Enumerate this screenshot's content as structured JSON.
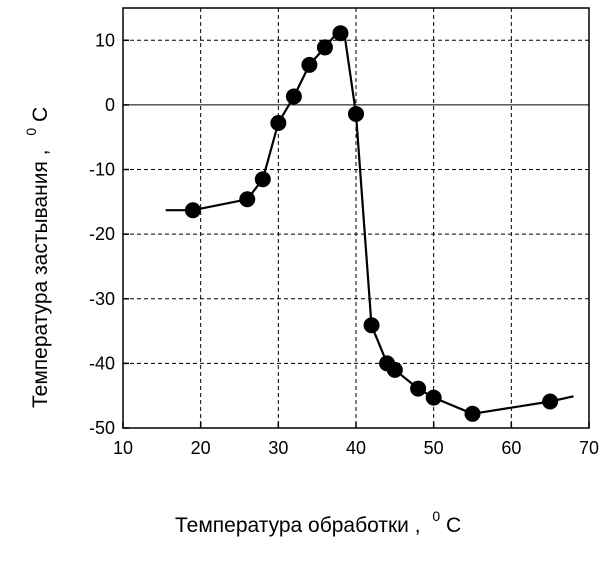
{
  "chart_data": {
    "type": "line",
    "title": "",
    "xlabel": "Температура  обработки  ,",
    "xlabel_unit": "C",
    "xlabel_unit_sup": "0",
    "ylabel": "Температура  застывания  ,",
    "ylabel_unit": "C",
    "ylabel_unit_sup": "0",
    "xlim": [
      10,
      70
    ],
    "ylim": [
      -50,
      15
    ],
    "xticks": [
      10,
      20,
      30,
      40,
      50,
      60,
      70
    ],
    "yticks": [
      -50,
      -40,
      -30,
      -20,
      -10,
      0,
      10
    ],
    "grid": true,
    "legend": "none",
    "line_color": "#000000",
    "marker_color": "#000000",
    "zero_line": 0,
    "line": {
      "x": [
        15.5,
        19,
        26,
        28,
        30,
        32,
        34,
        36,
        37.8,
        38.5,
        40,
        42,
        44,
        45,
        48,
        50,
        55,
        65,
        68
      ],
      "y": [
        -16.3,
        -16.3,
        -14.6,
        -11.5,
        -2.8,
        1.3,
        6.2,
        8.9,
        11.5,
        11.0,
        -1.4,
        -34.1,
        -40.0,
        -41.0,
        -43.9,
        -45.3,
        -47.8,
        -45.9,
        -45.1
      ]
    },
    "points": {
      "x": [
        19,
        26,
        28,
        30,
        32,
        34,
        36,
        38,
        40,
        42,
        44,
        45,
        48,
        50,
        55,
        65
      ],
      "y": [
        -16.3,
        -14.6,
        -11.5,
        -2.8,
        1.3,
        6.2,
        8.9,
        11.1,
        -1.4,
        -34.1,
        -40.0,
        -41.0,
        -43.9,
        -45.3,
        -47.8,
        -45.9
      ]
    }
  }
}
